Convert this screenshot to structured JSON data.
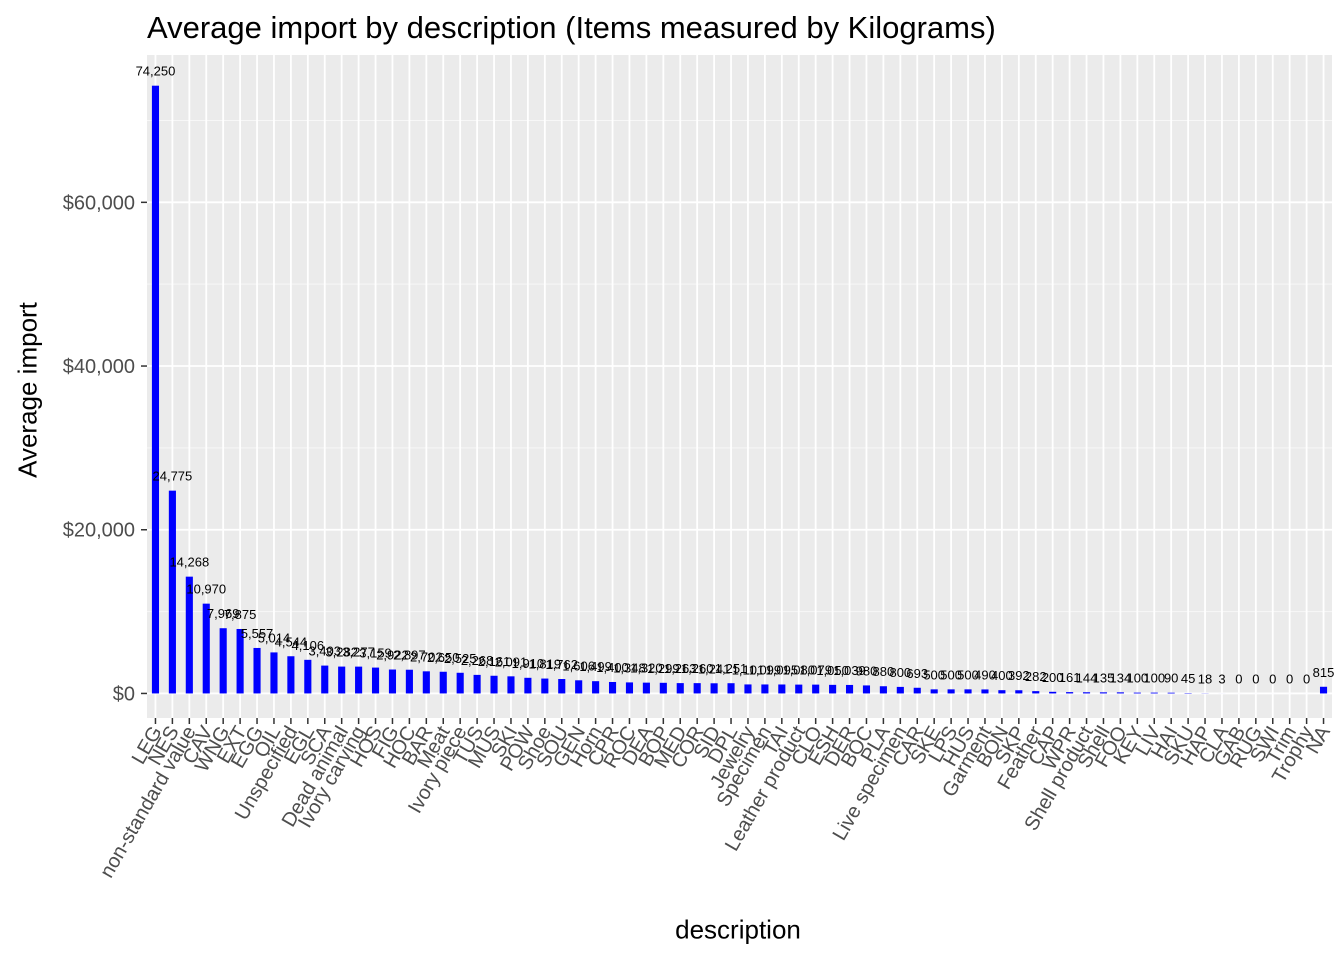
{
  "chart_data": {
    "type": "bar",
    "title": "Average import by description (Items measured by Kilograms)",
    "xlabel": "description",
    "ylabel": "Average import",
    "ylim": [
      -3000,
      78000
    ],
    "y_ticks": [
      0,
      20000,
      40000,
      60000
    ],
    "y_tick_labels": [
      "$0",
      "$20,000",
      "$40,000",
      "$60,000"
    ],
    "bar_color": "#0000ff",
    "panel_background": "#ebebeb",
    "grid": true,
    "categories": [
      "LEG",
      "NES",
      "non-standard value",
      "CAV",
      "WNG",
      "EXT",
      "EGG",
      "OIL",
      "Unspecified",
      "EGL",
      "SCA",
      "Dead animal",
      "Ivory carving",
      "HOS",
      "FIG",
      "HOC",
      "BAR",
      "Meat",
      "Ivory piece",
      "TUS",
      "MUS",
      "SKI",
      "POW",
      "Shoe",
      "SOU",
      "GEN",
      "Horn",
      "CPR",
      "ROC",
      "DEA",
      "BOP",
      "MED",
      "COR",
      "SID",
      "DPL",
      "Jewelry",
      "Specimen",
      "TAI",
      "Leather product",
      "CLO",
      "ESH",
      "DER",
      "BOC",
      "PLA",
      "Live specimen",
      "CAR",
      "SKE",
      "LPS",
      "HUS",
      "Garment",
      "BON",
      "SKP",
      "Feather",
      "CAP",
      "WPR",
      "Shell product",
      "Shell",
      "FOO",
      "KEY",
      "LIV",
      "HAI",
      "SKU",
      "HAP",
      "CLA",
      "GAB",
      "RUG",
      "SWI",
      "Trim",
      "Trophy",
      "NA"
    ],
    "values": [
      74250,
      24775,
      14268,
      10970,
      7969,
      7875,
      5557,
      5014,
      4544,
      4106,
      3403,
      3282,
      3277,
      3159,
      2922,
      2897,
      2702,
      2650,
      2525,
      2268,
      2161,
      2091,
      1910,
      1819,
      1762,
      1606,
      1499,
      1400,
      1348,
      1320,
      1299,
      1263,
      1260,
      1241,
      1251,
      1101,
      1099,
      1095,
      1080,
      1079,
      1050,
      1039,
      980,
      880,
      800,
      693,
      500,
      500,
      500,
      490,
      400,
      392,
      282,
      200,
      161,
      144,
      135,
      134,
      100,
      100,
      90,
      45,
      18,
      3,
      0,
      0,
      0,
      0,
      0,
      815
    ],
    "data_labels": [
      "74,250",
      "24,775",
      "14,268",
      "10,970",
      "7,969",
      "7,875",
      "5,557",
      "5,014",
      "4,544",
      "4,106",
      "3,403",
      "3,282",
      "3,277",
      "3,159",
      "2,922",
      "2,897",
      "2,702",
      "2,650",
      "2,525",
      "2,268",
      "2,161",
      "2,091",
      "1,910",
      "1,819",
      "1,762",
      "1,606",
      "1,499",
      "1,400",
      "1,348",
      "1,320",
      "1,299",
      "1,263",
      "1,260",
      "1,241",
      "1,251",
      "1,101",
      "1,099",
      "1,095",
      "1,080",
      "1,079",
      "1,050",
      "1,039",
      "980",
      "880",
      "800",
      "693",
      "500",
      "500",
      "500",
      "490",
      "400",
      "392",
      "282",
      "200",
      "161",
      "144",
      "135",
      "134",
      "100",
      "100",
      "90",
      "45",
      "18",
      "3",
      "0",
      "0",
      "0",
      "0",
      "0",
      "815"
    ]
  }
}
